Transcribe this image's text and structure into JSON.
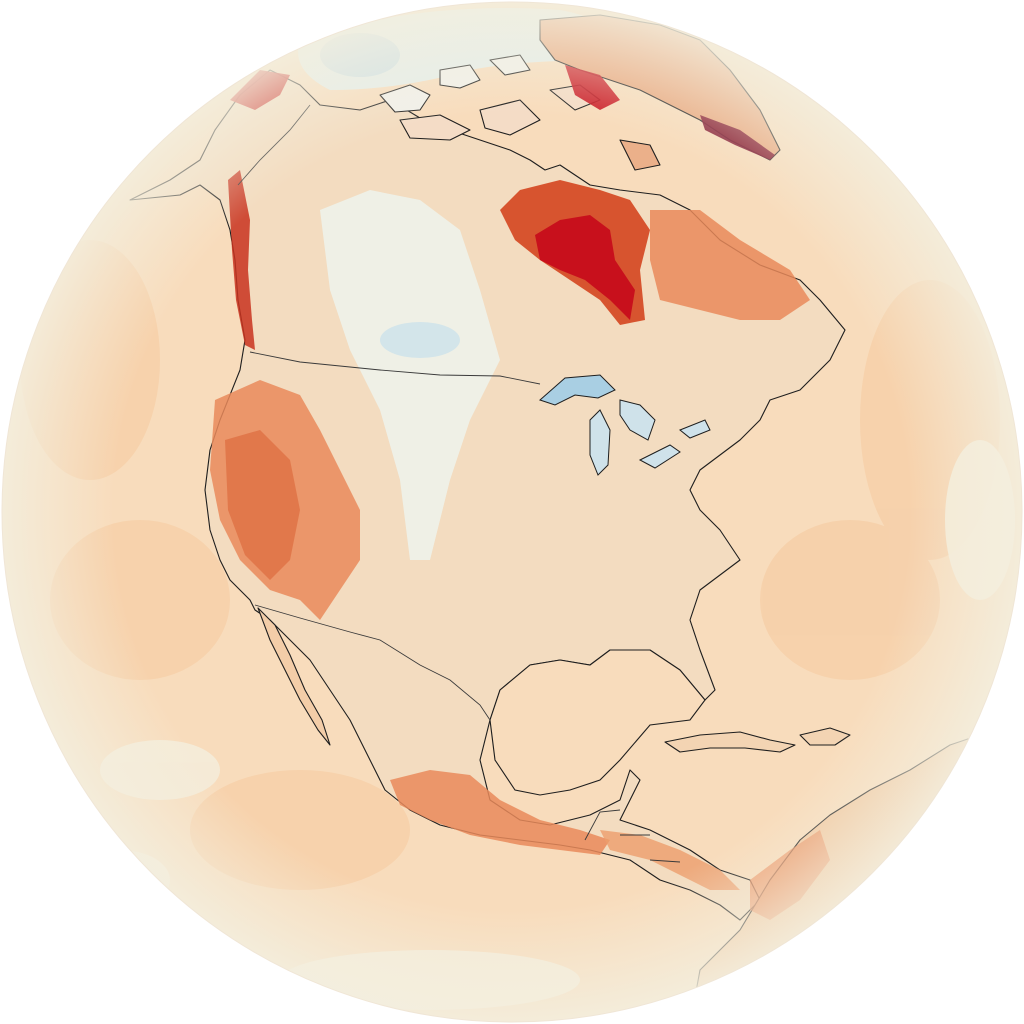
{
  "map": {
    "projection": "orthographic",
    "region": "North America",
    "variable": "temperature-anomaly",
    "colors": {
      "background": "#ffffff",
      "ocean_base": "#f8dcbc",
      "ocean_rim": "#f3efdf",
      "very_cold": "#a9cfe3",
      "cool": "#e2eff1",
      "neutral": "#f6ecdb",
      "warm": "#f2b98d",
      "warmer": "#e98a5a",
      "hot": "#d7542f",
      "very_hot": "#c81a16",
      "extreme": "#7a0a26",
      "coastline": "#1e1e1e",
      "border": "#3a3a3a"
    },
    "regions": [
      "ocean",
      "arctic-canada",
      "greenland",
      "alaska",
      "hudson-bay",
      "labrador-quebec",
      "western-united-states",
      "canadian-prairies",
      "great-lakes",
      "eastern-united-states",
      "mexico",
      "central-america",
      "caribbean",
      "south-america"
    ]
  }
}
